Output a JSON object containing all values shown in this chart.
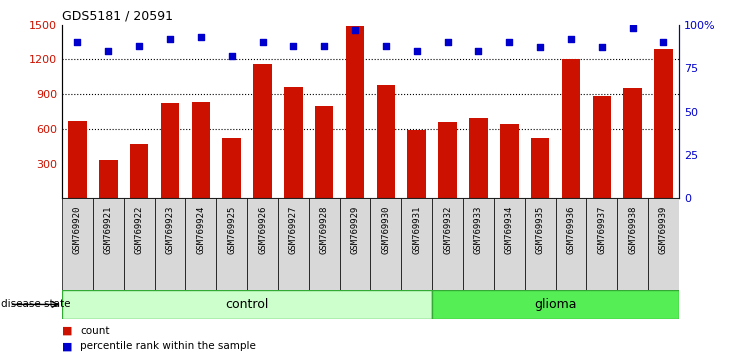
{
  "title": "GDS5181 / 20591",
  "samples": [
    "GSM769920",
    "GSM769921",
    "GSM769922",
    "GSM769923",
    "GSM769924",
    "GSM769925",
    "GSM769926",
    "GSM769927",
    "GSM769928",
    "GSM769929",
    "GSM769930",
    "GSM769931",
    "GSM769932",
    "GSM769933",
    "GSM769934",
    "GSM769935",
    "GSM769936",
    "GSM769937",
    "GSM769938",
    "GSM769939"
  ],
  "counts": [
    670,
    330,
    470,
    820,
    830,
    520,
    1160,
    960,
    800,
    1490,
    980,
    590,
    660,
    690,
    640,
    520,
    1200,
    880,
    950,
    1290
  ],
  "percentile_ranks": [
    90,
    85,
    88,
    92,
    93,
    82,
    90,
    88,
    88,
    97,
    88,
    85,
    90,
    85,
    90,
    87,
    92,
    87,
    98,
    90
  ],
  "control_count": 12,
  "glioma_count": 8,
  "bar_color": "#cc1100",
  "dot_color": "#0000cc",
  "ylim_left": [
    0,
    1500
  ],
  "ylim_right": [
    0,
    100
  ],
  "yticks_left": [
    300,
    600,
    900,
    1200,
    1500
  ],
  "yticks_right": [
    0,
    25,
    50,
    75,
    100
  ],
  "grid_values": [
    600,
    900,
    1200
  ],
  "control_color": "#ccffcc",
  "glioma_color": "#55ee55",
  "tickbox_color": "#d8d8d8",
  "label_bar": "count",
  "label_dot": "percentile rank within the sample",
  "disease_state_label": "disease state",
  "control_label": "control",
  "glioma_label": "glioma"
}
